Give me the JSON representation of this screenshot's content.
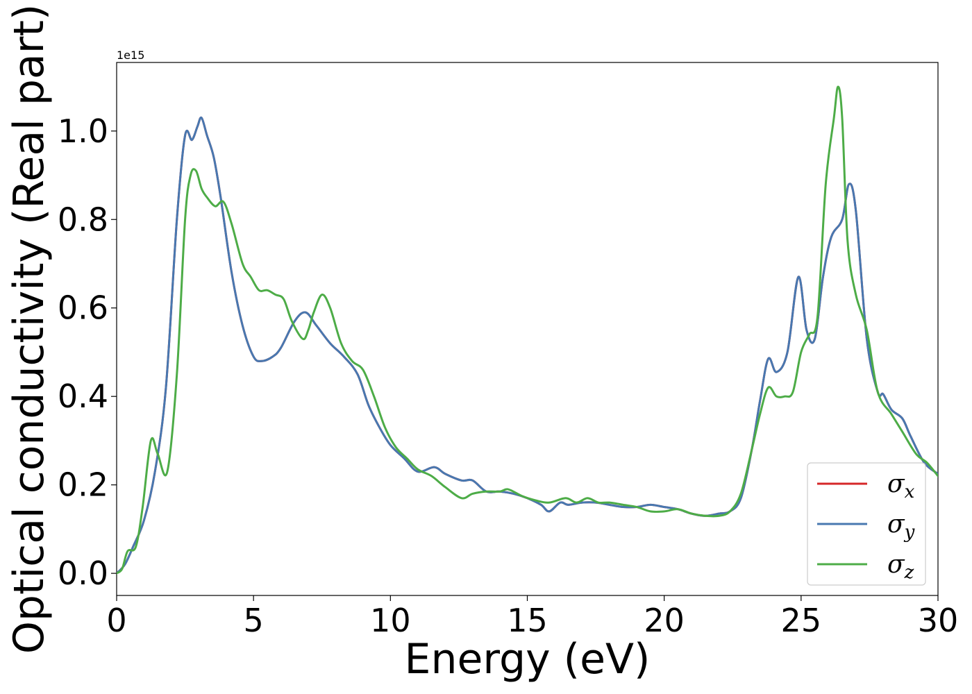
{
  "chart_data": {
    "type": "line",
    "xlabel": "Energy (eV)",
    "ylabel": "Optical conductivity (Real part)",
    "y_offset_text": "1e15",
    "y_multiplier": 1000000000000000.0,
    "xlim": [
      0,
      30
    ],
    "ylim": [
      -0.05,
      1.155
    ],
    "x_ticks": [
      0,
      5,
      10,
      15,
      20,
      25,
      30
    ],
    "x_tick_labels": [
      "0",
      "5",
      "10",
      "15",
      "20",
      "25",
      "30"
    ],
    "y_ticks": [
      0.0,
      0.2,
      0.4,
      0.6,
      0.8,
      1.0
    ],
    "y_tick_labels": [
      "0.0",
      "0.2",
      "0.4",
      "0.6",
      "0.8",
      "1.0"
    ],
    "grid": false,
    "legend_position": "bottom-right",
    "series": [
      {
        "name": "σx",
        "legend_base": "σ",
        "legend_sub": "x",
        "color": "#d62728",
        "x": [
          0,
          0.3,
          0.6,
          1.0,
          1.4,
          1.8,
          2.2,
          2.5,
          2.75,
          2.95,
          3.1,
          3.3,
          3.55,
          3.8,
          4.2,
          4.6,
          5.0,
          5.3,
          5.7,
          6.0,
          6.5,
          6.9,
          7.3,
          7.8,
          8.3,
          8.8,
          9.2,
          9.6,
          10.0,
          10.5,
          11.0,
          11.6,
          12.0,
          12.6,
          13.0,
          13.5,
          14.0,
          14.5,
          15.0,
          15.5,
          15.8,
          16.2,
          16.5,
          17.0,
          17.5,
          18.0,
          18.5,
          19.0,
          19.5,
          20.0,
          20.5,
          21.0,
          21.5,
          22.0,
          22.4,
          22.8,
          23.2,
          23.5,
          23.8,
          24.1,
          24.5,
          24.9,
          25.2,
          25.5,
          25.8,
          26.1,
          26.5,
          26.75,
          27.0,
          27.4,
          27.8,
          28.0,
          28.3,
          28.7,
          29.0,
          29.5,
          30.0
        ],
        "y": [
          0.0,
          0.02,
          0.06,
          0.12,
          0.23,
          0.42,
          0.8,
          0.99,
          0.98,
          1.01,
          1.03,
          0.99,
          0.94,
          0.85,
          0.68,
          0.56,
          0.49,
          0.48,
          0.49,
          0.51,
          0.57,
          0.59,
          0.56,
          0.52,
          0.49,
          0.45,
          0.38,
          0.33,
          0.29,
          0.26,
          0.23,
          0.24,
          0.225,
          0.21,
          0.21,
          0.185,
          0.185,
          0.18,
          0.17,
          0.155,
          0.14,
          0.16,
          0.155,
          0.16,
          0.16,
          0.155,
          0.15,
          0.15,
          0.155,
          0.15,
          0.145,
          0.135,
          0.13,
          0.135,
          0.14,
          0.17,
          0.28,
          0.39,
          0.485,
          0.455,
          0.5,
          0.67,
          0.55,
          0.53,
          0.67,
          0.76,
          0.8,
          0.88,
          0.82,
          0.53,
          0.41,
          0.405,
          0.37,
          0.35,
          0.31,
          0.25,
          0.225
        ]
      },
      {
        "name": "σy",
        "legend_base": "σ",
        "legend_sub": "y",
        "color": "#4878b0",
        "x": [
          0,
          0.3,
          0.6,
          1.0,
          1.4,
          1.8,
          2.2,
          2.5,
          2.75,
          2.95,
          3.1,
          3.3,
          3.55,
          3.8,
          4.2,
          4.6,
          5.0,
          5.3,
          5.7,
          6.0,
          6.5,
          6.9,
          7.3,
          7.8,
          8.3,
          8.8,
          9.2,
          9.6,
          10.0,
          10.5,
          11.0,
          11.6,
          12.0,
          12.6,
          13.0,
          13.5,
          14.0,
          14.5,
          15.0,
          15.5,
          15.8,
          16.2,
          16.5,
          17.0,
          17.5,
          18.0,
          18.5,
          19.0,
          19.5,
          20.0,
          20.5,
          21.0,
          21.5,
          22.0,
          22.4,
          22.8,
          23.2,
          23.5,
          23.8,
          24.1,
          24.5,
          24.9,
          25.2,
          25.5,
          25.8,
          26.1,
          26.5,
          26.75,
          27.0,
          27.4,
          27.8,
          28.0,
          28.3,
          28.7,
          29.0,
          29.5,
          30.0
        ],
        "y": [
          0.0,
          0.02,
          0.06,
          0.12,
          0.23,
          0.42,
          0.8,
          0.99,
          0.98,
          1.01,
          1.03,
          0.99,
          0.94,
          0.85,
          0.68,
          0.56,
          0.49,
          0.48,
          0.49,
          0.51,
          0.57,
          0.59,
          0.56,
          0.52,
          0.49,
          0.45,
          0.38,
          0.33,
          0.29,
          0.26,
          0.23,
          0.24,
          0.225,
          0.21,
          0.21,
          0.185,
          0.185,
          0.18,
          0.17,
          0.155,
          0.14,
          0.16,
          0.155,
          0.16,
          0.16,
          0.155,
          0.15,
          0.15,
          0.155,
          0.15,
          0.145,
          0.135,
          0.13,
          0.135,
          0.14,
          0.17,
          0.28,
          0.39,
          0.485,
          0.455,
          0.5,
          0.67,
          0.55,
          0.53,
          0.67,
          0.76,
          0.8,
          0.88,
          0.82,
          0.53,
          0.41,
          0.405,
          0.37,
          0.35,
          0.31,
          0.25,
          0.225
        ]
      },
      {
        "name": "σz",
        "legend_base": "σ",
        "legend_sub": "z",
        "color": "#4dac47",
        "x": [
          0,
          0.2,
          0.4,
          0.7,
          0.95,
          1.25,
          1.5,
          1.85,
          2.2,
          2.5,
          2.7,
          2.9,
          3.1,
          3.3,
          3.6,
          3.9,
          4.2,
          4.6,
          4.9,
          5.2,
          5.5,
          5.8,
          6.1,
          6.4,
          6.8,
          7.0,
          7.2,
          7.5,
          7.8,
          8.2,
          8.6,
          9.0,
          9.4,
          9.8,
          10.2,
          10.6,
          11.0,
          11.5,
          12.0,
          12.6,
          13.0,
          13.5,
          14.0,
          14.3,
          14.8,
          15.3,
          15.8,
          16.4,
          16.8,
          17.2,
          17.6,
          18.0,
          18.5,
          19.0,
          19.5,
          20.0,
          20.5,
          21.0,
          21.5,
          22.0,
          22.4,
          22.8,
          23.2,
          23.5,
          23.8,
          24.1,
          24.4,
          24.7,
          25.0,
          25.3,
          25.6,
          25.9,
          26.2,
          26.35,
          26.5,
          26.7,
          27.0,
          27.4,
          27.8,
          28.3,
          28.7,
          29.2,
          29.6,
          30.0
        ],
        "y": [
          0.0,
          0.01,
          0.05,
          0.06,
          0.15,
          0.3,
          0.27,
          0.23,
          0.45,
          0.8,
          0.9,
          0.91,
          0.87,
          0.85,
          0.83,
          0.84,
          0.79,
          0.7,
          0.67,
          0.64,
          0.64,
          0.63,
          0.62,
          0.57,
          0.53,
          0.55,
          0.59,
          0.63,
          0.6,
          0.52,
          0.48,
          0.46,
          0.4,
          0.33,
          0.285,
          0.26,
          0.235,
          0.22,
          0.195,
          0.17,
          0.18,
          0.185,
          0.185,
          0.19,
          0.175,
          0.165,
          0.16,
          0.17,
          0.16,
          0.17,
          0.16,
          0.16,
          0.155,
          0.15,
          0.14,
          0.14,
          0.145,
          0.135,
          0.13,
          0.13,
          0.14,
          0.18,
          0.28,
          0.36,
          0.42,
          0.4,
          0.4,
          0.41,
          0.5,
          0.54,
          0.58,
          0.88,
          1.03,
          1.1,
          1.03,
          0.75,
          0.63,
          0.55,
          0.41,
          0.36,
          0.32,
          0.27,
          0.25,
          0.22
        ]
      }
    ]
  }
}
